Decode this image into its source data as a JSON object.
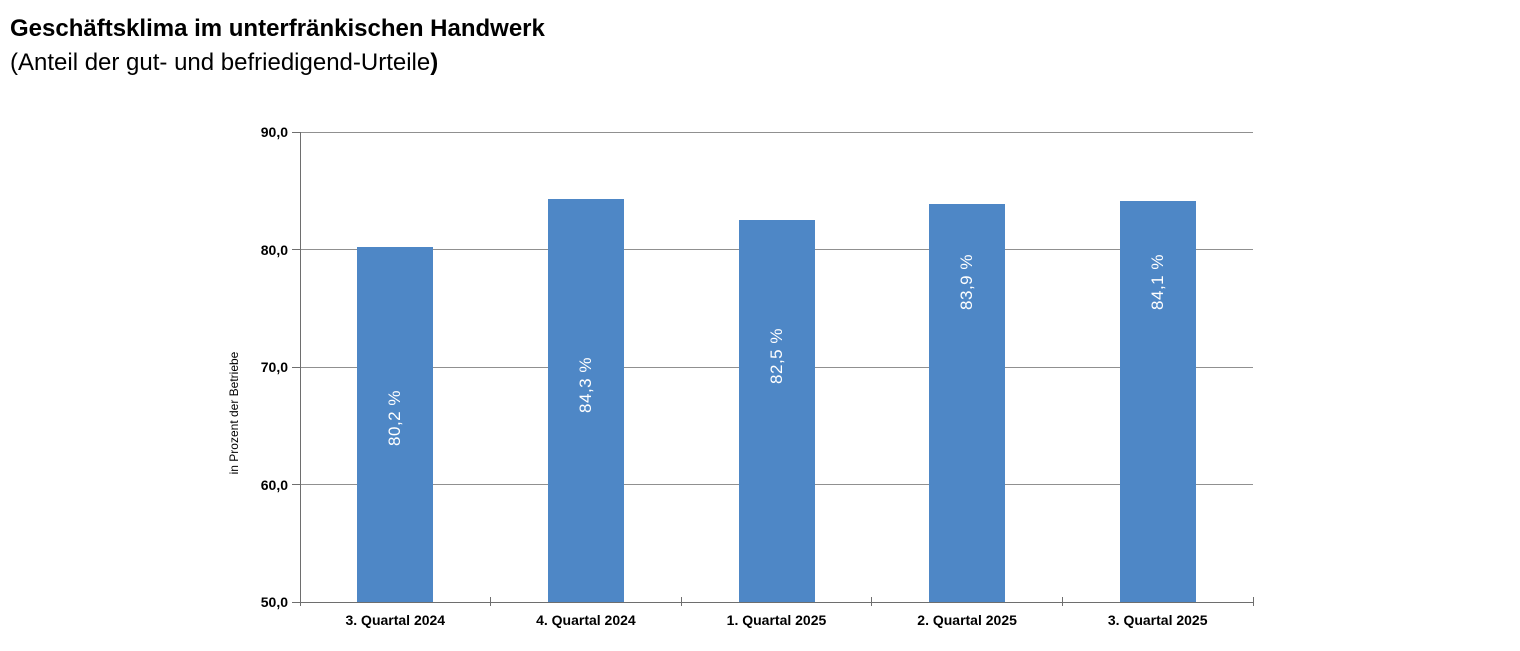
{
  "title": "Geschäftsklima im unterfränkischen Handwerk",
  "subtitle": {
    "text": "(Anteil der gut- und befriedigend-Urteile",
    "bold_suffix": ")"
  },
  "chart_data": {
    "type": "bar",
    "title": "Geschäftsklima im unterfränkischen Handwerk (Anteil der gut- und befriedigend-Urteile)",
    "categories": [
      "3. Quartal 2024",
      "4. Quartal 2024",
      "1. Quartal 2025",
      "2. Quartal 2025",
      "3. Quartal 2025"
    ],
    "values": [
      80.2,
      84.3,
      82.5,
      83.9,
      84.1
    ],
    "bar_labels": [
      "80,2 %",
      "84,3 %",
      "82,5 %",
      "83,9 %",
      "84,1 %"
    ],
    "xlabel": "",
    "ylabel": "in Prozent der Betriebe",
    "ylim": [
      50,
      90
    ],
    "yticks": [
      {
        "value": 50,
        "label": "50,0"
      },
      {
        "value": 60,
        "label": "60,0"
      },
      {
        "value": 70,
        "label": "70,0"
      },
      {
        "value": 80,
        "label": "80,0"
      },
      {
        "value": 90,
        "label": "90,0"
      }
    ],
    "grid": true,
    "legend": false,
    "bar_color": "#4E87C6",
    "bar_label_color": "#FFFFFF",
    "gridline_color": "#909090",
    "axis_color": "#6E6E6E",
    "text_color": "#000000"
  }
}
